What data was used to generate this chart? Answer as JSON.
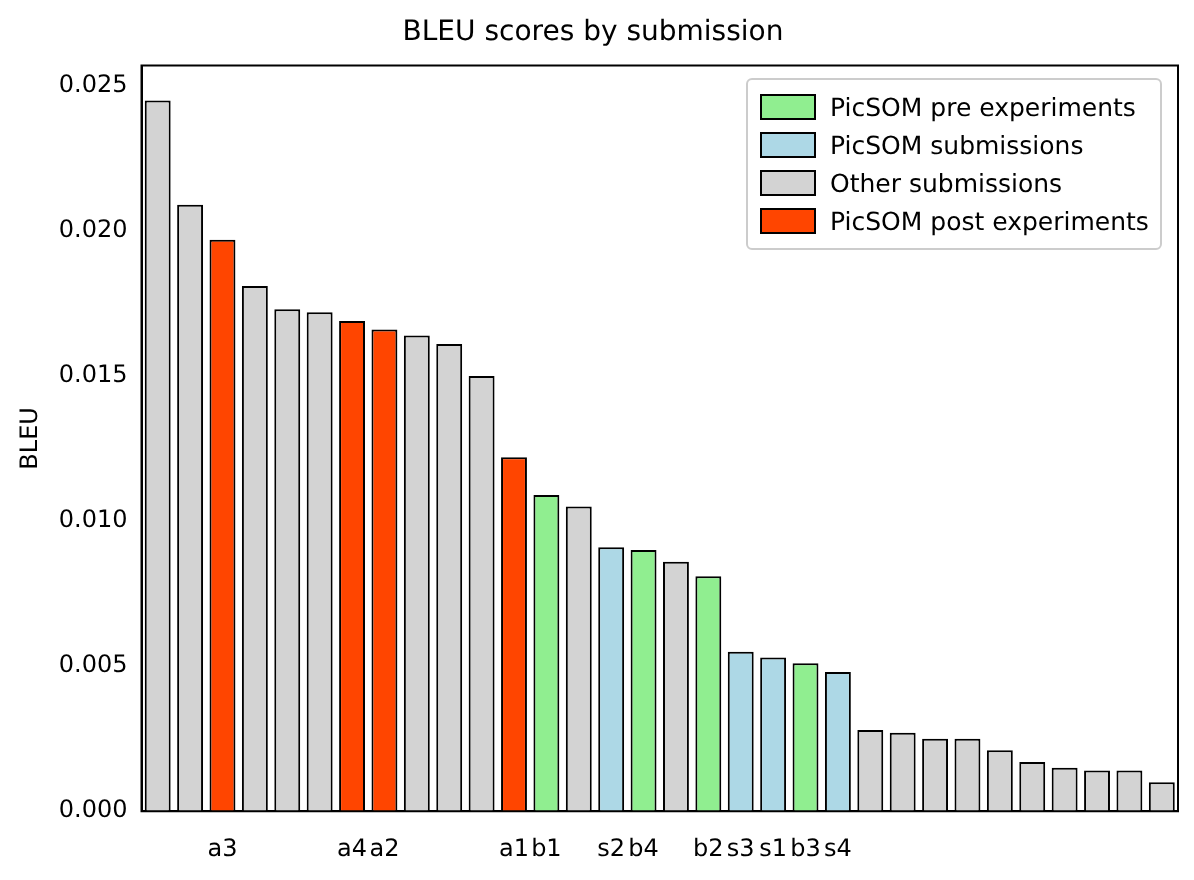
{
  "chart_data": {
    "type": "bar",
    "title": "BLEU scores by submission",
    "ylabel": "BLEU",
    "categories": [
      null,
      null,
      "a3",
      null,
      null,
      null,
      "a4",
      "a2",
      null,
      null,
      null,
      "a1",
      "b1",
      null,
      "s2",
      "b4",
      null,
      "b2",
      "s3",
      "s1",
      "b3",
      "s4",
      null,
      null,
      null,
      null,
      null,
      null,
      null,
      null,
      null,
      null
    ],
    "series": [
      {
        "name": "PicSOM pre experiments",
        "color": "#90ee90",
        "values": [
          null,
          null,
          null,
          null,
          null,
          null,
          null,
          null,
          null,
          null,
          null,
          null,
          0.0109,
          null,
          null,
          0.009,
          null,
          0.0081,
          null,
          null,
          0.0051,
          null,
          null,
          null,
          null,
          null,
          null,
          null,
          null,
          null,
          null,
          null
        ]
      },
      {
        "name": "PicSOM submissions",
        "color": "#add8e6",
        "values": [
          null,
          null,
          null,
          null,
          null,
          null,
          null,
          null,
          null,
          null,
          null,
          null,
          null,
          null,
          0.0091,
          null,
          null,
          null,
          0.0055,
          0.0053,
          null,
          0.0048,
          null,
          null,
          null,
          null,
          null,
          null,
          null,
          null,
          null,
          null
        ]
      },
      {
        "name": "Other submissions",
        "color": "#d3d3d3",
        "values": [
          0.0245,
          0.0209,
          null,
          0.0181,
          0.0173,
          0.0172,
          null,
          null,
          0.0164,
          0.0161,
          0.015,
          null,
          null,
          0.0105,
          null,
          null,
          0.0086,
          null,
          null,
          null,
          null,
          null,
          0.0028,
          0.0027,
          0.0025,
          0.0025,
          0.0021,
          0.0017,
          0.0015,
          0.0014,
          0.0014,
          0.001
        ]
      },
      {
        "name": "PicSOM post experiments",
        "color": "#ff4500",
        "values": [
          null,
          null,
          0.0197,
          null,
          null,
          null,
          0.0169,
          0.0166,
          null,
          null,
          null,
          0.0122,
          null,
          null,
          null,
          null,
          null,
          null,
          null,
          null,
          null,
          null,
          null,
          null,
          null,
          null,
          null,
          null,
          null,
          null,
          null,
          null
        ]
      }
    ],
    "ylim": [
      0,
      0.0257
    ],
    "yticks": [
      {
        "value": 0,
        "label": "0.000"
      },
      {
        "value": 0.005,
        "label": "0.005"
      },
      {
        "value": 0.01,
        "label": "0.010"
      },
      {
        "value": 0.015,
        "label": "0.015"
      },
      {
        "value": 0.02,
        "label": "0.020"
      },
      {
        "value": 0.025,
        "label": "0.025"
      }
    ],
    "legend": "top right"
  }
}
